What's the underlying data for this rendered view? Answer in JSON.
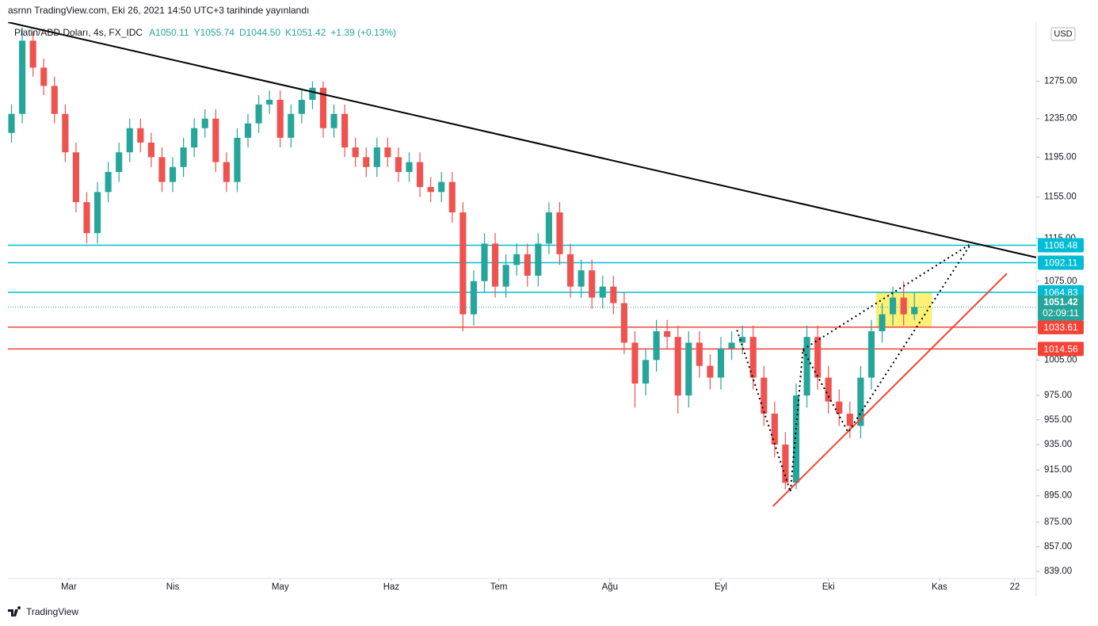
{
  "header": "asrnn TradingView.com, Eki 26, 2021 14:50 UTC+3 tarihinde yayınlandı",
  "footer": "TradingView",
  "chart_data": {
    "type": "candlestick",
    "symbol": "Platin/ABD Doları, 4s, FX_IDC",
    "legend_values": [
      "A1050.11",
      "Y1055.74",
      "D1044.50",
      "K1051.42",
      "+1.39 (+0.13%)"
    ],
    "currency": "USD",
    "countdown": "02:09:11",
    "log_scale": true,
    "grid": false,
    "up_color": "#26a69a",
    "down_color": "#ef5350",
    "xlim": [
      0,
      287
    ],
    "xticks": [
      {
        "value": 17,
        "label": "Mar"
      },
      {
        "value": 46,
        "label": "Nis"
      },
      {
        "value": 76,
        "label": "May"
      },
      {
        "value": 107,
        "label": "Haz"
      },
      {
        "value": 137,
        "label": "Tem"
      },
      {
        "value": 168,
        "label": "Ağu"
      },
      {
        "value": 199,
        "label": "Eyl"
      },
      {
        "value": 229,
        "label": "Eki"
      },
      {
        "value": 260,
        "label": "Kas"
      },
      {
        "value": 281,
        "label": "22"
      }
    ],
    "ylim": [
      834,
      1341
    ],
    "yticks": [
      {
        "value": 1275,
        "label": "1275.00"
      },
      {
        "value": 1235,
        "label": "1235.00"
      },
      {
        "value": 1195,
        "label": "1195.00"
      },
      {
        "value": 1155,
        "label": "1155.00"
      },
      {
        "value": 1115,
        "label": "1115.00"
      },
      {
        "value": 1075,
        "label": "1075.00"
      },
      {
        "value": 1005,
        "label": "1005.00"
      },
      {
        "value": 975,
        "label": "975.00"
      },
      {
        "value": 955,
        "label": "955.00"
      },
      {
        "value": 935,
        "label": "935.00"
      },
      {
        "value": 915,
        "label": "915.00"
      },
      {
        "value": 895,
        "label": "895.00"
      },
      {
        "value": 875,
        "label": "875.00"
      },
      {
        "value": 857,
        "label": "857.00"
      },
      {
        "value": 839,
        "label": "839.00"
      }
    ],
    "x": [
      1,
      4,
      7,
      10,
      13,
      16,
      19,
      22,
      25,
      28,
      31,
      34,
      37,
      40,
      43,
      46,
      49,
      52,
      55,
      58,
      61,
      64,
      67,
      70,
      73,
      76,
      79,
      82,
      85,
      88,
      91,
      94,
      97,
      100,
      103,
      106,
      109,
      112,
      115,
      118,
      121,
      124,
      127,
      130,
      133,
      136,
      139,
      142,
      145,
      148,
      151,
      154,
      157,
      160,
      163,
      166,
      169,
      172,
      175,
      178,
      181,
      184,
      187,
      190,
      193,
      196,
      199,
      202,
      205,
      208,
      211,
      214,
      217,
      220,
      223,
      226,
      229,
      232,
      235,
      238,
      241,
      244,
      247,
      250,
      253
    ],
    "open": [
      1220,
      1240,
      1320,
      1290,
      1270,
      1240,
      1200,
      1150,
      1120,
      1160,
      1180,
      1200,
      1225,
      1210,
      1195,
      1170,
      1185,
      1205,
      1225,
      1235,
      1190,
      1170,
      1215,
      1230,
      1250,
      1255,
      1215,
      1240,
      1255,
      1268,
      1225,
      1240,
      1205,
      1195,
      1185,
      1205,
      1195,
      1180,
      1190,
      1165,
      1160,
      1170,
      1140,
      1045,
      1075,
      1110,
      1070,
      1090,
      1100,
      1080,
      1110,
      1140,
      1100,
      1070,
      1085,
      1060,
      1070,
      1055,
      1020,
      985,
      1005,
      1030,
      1025,
      975,
      1020,
      1000,
      990,
      1015,
      1020,
      1025,
      990,
      960,
      935,
      905,
      975,
      1025,
      990,
      970,
      960,
      950,
      990,
      1030,
      1045,
      1060,
      1045
    ],
    "high": [
      1250,
      1335,
      1330,
      1300,
      1280,
      1250,
      1210,
      1160,
      1170,
      1190,
      1210,
      1235,
      1235,
      1220,
      1205,
      1195,
      1215,
      1235,
      1245,
      1245,
      1200,
      1225,
      1240,
      1260,
      1265,
      1265,
      1250,
      1265,
      1275,
      1275,
      1250,
      1250,
      1215,
      1205,
      1215,
      1215,
      1205,
      1200,
      1200,
      1175,
      1180,
      1180,
      1150,
      1085,
      1120,
      1120,
      1100,
      1110,
      1110,
      1120,
      1150,
      1150,
      1110,
      1095,
      1095,
      1080,
      1080,
      1065,
      1030,
      1015,
      1040,
      1040,
      1035,
      1030,
      1030,
      1010,
      1025,
      1030,
      1035,
      1035,
      1000,
      970,
      945,
      985,
      1035,
      1035,
      1000,
      980,
      970,
      1000,
      1040,
      1055,
      1070,
      1075,
      1065
    ],
    "low": [
      1210,
      1230,
      1280,
      1260,
      1230,
      1190,
      1140,
      1110,
      1110,
      1150,
      1170,
      1190,
      1200,
      1185,
      1160,
      1160,
      1175,
      1195,
      1215,
      1180,
      1160,
      1160,
      1205,
      1220,
      1240,
      1205,
      1205,
      1230,
      1245,
      1215,
      1215,
      1195,
      1185,
      1175,
      1175,
      1185,
      1170,
      1170,
      1155,
      1150,
      1150,
      1130,
      1030,
      1035,
      1065,
      1060,
      1060,
      1080,
      1070,
      1070,
      1100,
      1090,
      1060,
      1060,
      1050,
      1050,
      1045,
      1010,
      965,
      975,
      995,
      1015,
      960,
      965,
      990,
      980,
      980,
      1005,
      1010,
      980,
      950,
      925,
      900,
      900,
      965,
      980,
      960,
      950,
      940,
      940,
      980,
      1020,
      1035,
      1035,
      1040
    ],
    "close": [
      1240,
      1320,
      1290,
      1270,
      1240,
      1200,
      1150,
      1120,
      1160,
      1180,
      1200,
      1225,
      1210,
      1195,
      1170,
      1185,
      1205,
      1225,
      1235,
      1190,
      1170,
      1215,
      1230,
      1250,
      1255,
      1215,
      1240,
      1255,
      1268,
      1225,
      1240,
      1205,
      1195,
      1185,
      1205,
      1195,
      1180,
      1190,
      1165,
      1160,
      1170,
      1140,
      1045,
      1075,
      1110,
      1070,
      1090,
      1100,
      1080,
      1110,
      1140,
      1100,
      1070,
      1085,
      1060,
      1070,
      1055,
      1020,
      985,
      1005,
      1030,
      1025,
      975,
      1020,
      1000,
      990,
      1015,
      1020,
      1025,
      990,
      960,
      935,
      905,
      975,
      1025,
      990,
      970,
      960,
      950,
      990,
      1030,
      1045,
      1060,
      1045,
      1051.42
    ],
    "levels": [
      {
        "value": 1108.48,
        "color": "#00bcd4"
      },
      {
        "value": 1092.11,
        "color": "#00bcd4"
      },
      {
        "value": 1064.83,
        "color": "#00bcd4"
      },
      {
        "value": 1033.61,
        "color": "#f44336"
      },
      {
        "value": 1014.56,
        "color": "#f44336"
      }
    ],
    "last_price": 1051.42,
    "last_price_color": "#26a69a",
    "highlight": {
      "x": [
        242.5,
        257.7
      ],
      "y": [
        1033.61,
        1064.83
      ],
      "color": "#ffeb3b"
    },
    "drawings": [
      {
        "color": "#000000",
        "style": "solid",
        "points": [
          [
            0,
            1341
          ],
          [
            287,
            1097
          ]
        ]
      },
      {
        "color": "#f44336",
        "style": "solid",
        "points": [
          [
            213.5,
            887
          ],
          [
            278.8,
            1082
          ]
        ]
      },
      {
        "color": "#000000",
        "style": "dotted",
        "points": [
          [
            203.5,
            1031
          ],
          [
            218.4,
            898
          ],
          [
            221.9,
            1014
          ],
          [
            234.5,
            945
          ],
          [
            268.8,
            1110
          ]
        ]
      },
      {
        "color": "#000000",
        "style": "dotted",
        "points": [
          [
            221.9,
            1014
          ],
          [
            268.8,
            1110
          ]
        ]
      }
    ]
  }
}
